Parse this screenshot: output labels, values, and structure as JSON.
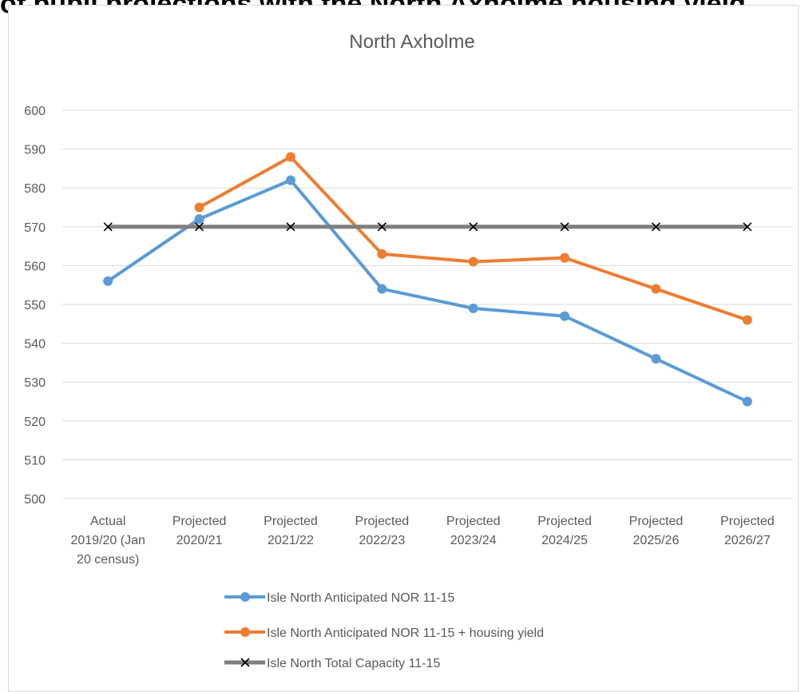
{
  "page": {
    "heading": "of pupil projections with the North Axholme housing yield"
  },
  "chart_data": {
    "type": "line",
    "title": "North Axholme",
    "categories": [
      [
        "Actual",
        "2019/20 (Jan",
        "20 census)"
      ],
      [
        "Projected",
        "2020/21"
      ],
      [
        "Projected",
        "2021/22"
      ],
      [
        "Projected",
        "2022/23"
      ],
      [
        "Projected",
        "2023/24"
      ],
      [
        "Projected",
        "2024/25"
      ],
      [
        "Projected",
        "2025/26"
      ],
      [
        "Projected",
        "2026/27"
      ]
    ],
    "ylim": [
      500,
      600
    ],
    "yticks": [
      500,
      510,
      520,
      530,
      540,
      550,
      560,
      570,
      580,
      590,
      600
    ],
    "grid": true,
    "legend_position": "bottom",
    "series": [
      {
        "name": "Isle North Anticipated NOR 11-15",
        "color": "#5b9bd5",
        "marker": "circle",
        "values": [
          556,
          572,
          582,
          554,
          549,
          547,
          536,
          525
        ]
      },
      {
        "name": "Isle North Anticipated NOR 11-15 + housing yield",
        "color": "#ed7d31",
        "marker": "circle",
        "values": [
          null,
          575,
          588,
          563,
          561,
          562,
          554,
          546
        ]
      },
      {
        "name": "Isle North Total Capacity 11-15",
        "color": "#7f7f7f",
        "marker": "x",
        "values": [
          570,
          570,
          570,
          570,
          570,
          570,
          570,
          570
        ]
      }
    ]
  }
}
